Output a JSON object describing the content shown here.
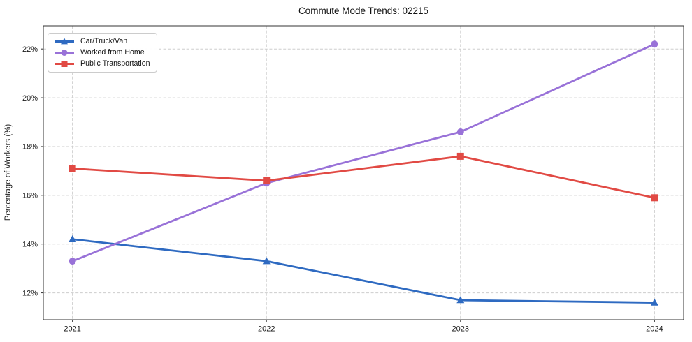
{
  "chart_data": {
    "type": "line",
    "title": "Commute Mode Trends: 02215",
    "xlabel": "",
    "ylabel": "Percentage of Workers (%)",
    "categories": [
      "2021",
      "2022",
      "2023",
      "2024"
    ],
    "x": [
      2021,
      2022,
      2023,
      2024
    ],
    "series": [
      {
        "name": "Car/Truck/Van",
        "color": "#2e6ac1",
        "marker": "triangle",
        "values": [
          14.2,
          13.3,
          11.7,
          11.6
        ]
      },
      {
        "name": "Worked from Home",
        "color": "#9972d8",
        "marker": "circle",
        "values": [
          13.3,
          16.5,
          18.6,
          22.2
        ]
      },
      {
        "name": "Public Transportation",
        "color": "#e14a44",
        "marker": "square",
        "values": [
          17.1,
          16.6,
          17.6,
          15.9
        ]
      }
    ],
    "y_ticks": [
      12,
      14,
      16,
      18,
      20,
      22
    ],
    "y_tick_labels": [
      "12%",
      "14%",
      "16%",
      "18%",
      "20%",
      "22%"
    ],
    "ylim": [
      10.9,
      22.95
    ],
    "xlim": [
      2020.85,
      2024.15
    ],
    "grid": true,
    "grid_style": "dashed",
    "legend_position": "upper-left",
    "colors": {
      "grid": "#cdcdcd",
      "axis": "#333333",
      "text": "#1a1a1a"
    }
  }
}
